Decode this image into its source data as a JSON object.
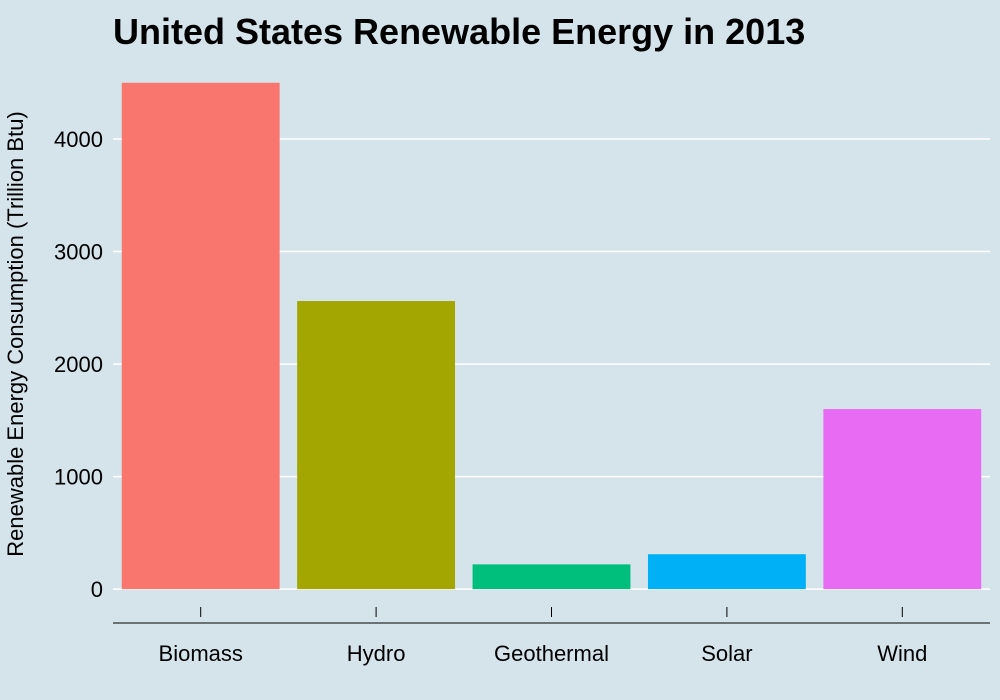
{
  "chart_data": {
    "type": "bar",
    "title": "United States Renewable Energy in 2013",
    "xlabel": "",
    "ylabel": "Renewable Energy Consumption (Trillion Btu)",
    "categories": [
      "Biomass",
      "Hydro",
      "Geothermal",
      "Solar",
      "Wind"
    ],
    "values": [
      4500,
      2560,
      220,
      310,
      1600
    ],
    "colors": [
      "#f8766d",
      "#a3a500",
      "#00bf7d",
      "#00b0f6",
      "#e76bf3"
    ],
    "yticks": [
      0,
      1000,
      2000,
      3000,
      4000
    ],
    "ylim": [
      -230,
      4720
    ],
    "grid": true,
    "legend": "none",
    "background": "#d5e4eb",
    "grid_color": "#ffffff"
  }
}
